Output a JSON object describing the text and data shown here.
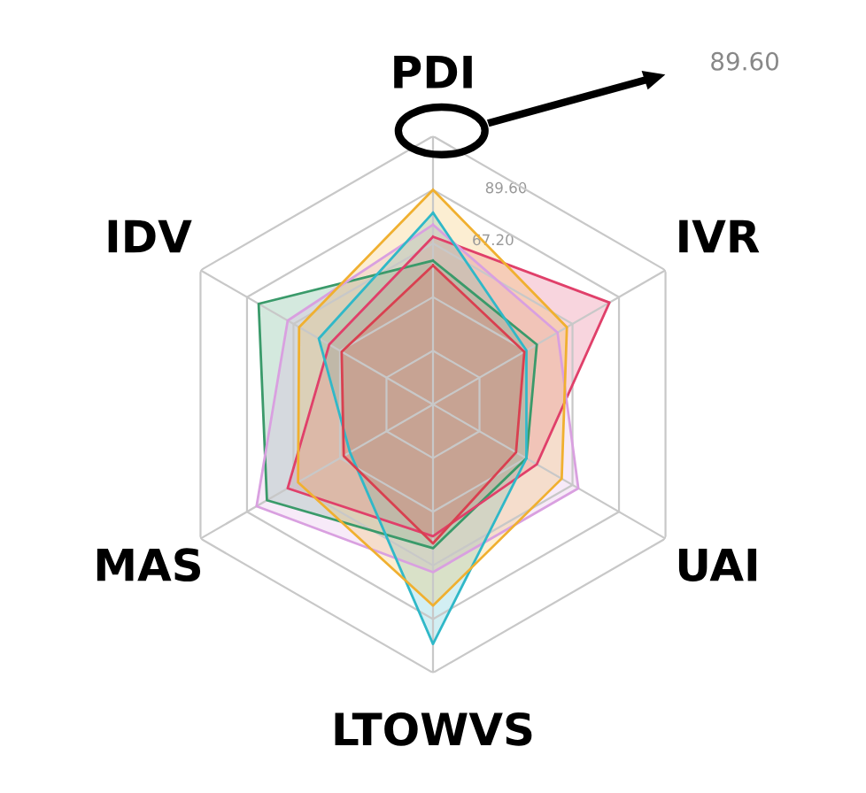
{
  "chart_data": {
    "type": "radar",
    "categories": [
      "PDI",
      "IVR",
      "UAI",
      "LTOWVS",
      "MAS",
      "IDV"
    ],
    "ylim": [
      0,
      112
    ],
    "yticks": [
      {
        "value": 67.2,
        "label": "67.20"
      },
      {
        "value": 89.6,
        "label": "89.60"
      }
    ],
    "grid": true,
    "series": [
      {
        "color": "#3a9a6a",
        "values": [
          60,
          50,
          45,
          60,
          80,
          84
        ]
      },
      {
        "color": "#e0406a",
        "values": [
          70,
          85,
          50,
          55,
          70,
          50
        ]
      },
      {
        "color": "#d9a0e0",
        "values": [
          75,
          60,
          70,
          70,
          85,
          70
        ]
      },
      {
        "color": "#30b8c8",
        "values": [
          80,
          45,
          45,
          100,
          40,
          55
        ]
      },
      {
        "color": "#d94050",
        "values": [
          58,
          44,
          40,
          58,
          43,
          44
        ]
      },
      {
        "color": "#f0b030",
        "values": [
          89.6,
          64.5,
          62,
          84,
          65,
          64.5
        ]
      }
    ],
    "annotations": [
      "89.60"
    ]
  }
}
